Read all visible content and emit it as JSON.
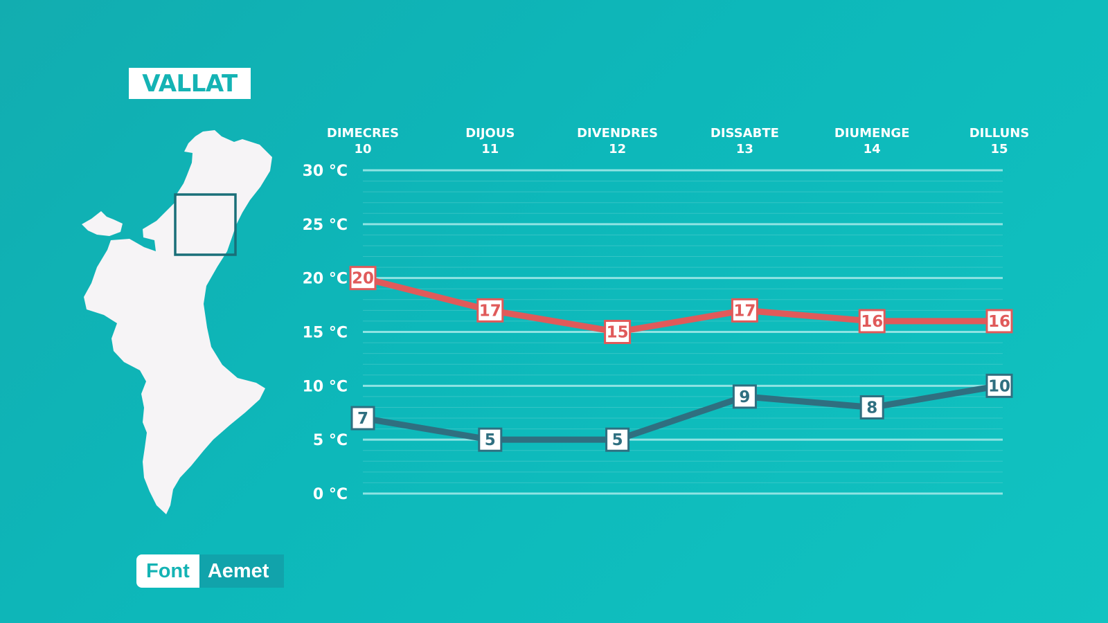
{
  "region_label": "VALLAT",
  "source": {
    "key": "Font",
    "value": "Aemet"
  },
  "colors": {
    "background": "#12b3b5",
    "max_series": "#e05a5a",
    "min_series": "#2f6f80",
    "gridline": "#8fe3e3",
    "map_fill": "#f6f4f6",
    "map_highlight": "#1a6f78"
  },
  "map": {
    "highlighted_area": "Vallat"
  },
  "chart_data": {
    "type": "line",
    "categories": [
      {
        "day": "DIMECRES",
        "date": "10"
      },
      {
        "day": "DIJOUS",
        "date": "11"
      },
      {
        "day": "DIVENDRES",
        "date": "12"
      },
      {
        "day": "DISSABTE",
        "date": "13"
      },
      {
        "day": "DIUMENGE",
        "date": "14"
      },
      {
        "day": "DILLUNS",
        "date": "15"
      }
    ],
    "series": [
      {
        "values": [
          20,
          17,
          15,
          17,
          16,
          16
        ],
        "color": "#e05a5a"
      },
      {
        "values": [
          7,
          5,
          5,
          9,
          8,
          10
        ],
        "color": "#2f6f80"
      }
    ],
    "yticks": [
      {
        "value": 0,
        "label": "0 °C"
      },
      {
        "value": 5,
        "label": "5 °C"
      },
      {
        "value": 10,
        "label": "10 °C"
      },
      {
        "value": 15,
        "label": "15 °C"
      },
      {
        "value": 20,
        "label": "20 °C"
      },
      {
        "value": 25,
        "label": "25 °C"
      },
      {
        "value": 30,
        "label": "30 °C"
      }
    ],
    "ylim": [
      0,
      30
    ],
    "grid": true,
    "legend": "none"
  }
}
